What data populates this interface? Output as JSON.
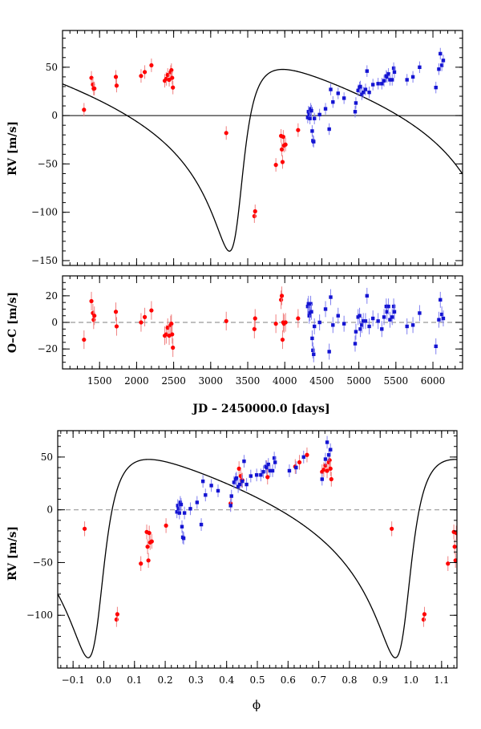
{
  "figure": {
    "ylabel_top": "RV [m/s]",
    "ylabel_resid": "O–C [m/s]",
    "xlabel_time": "JD – 2450000.0 [days]",
    "ylabel_phase": "RV [m/s]",
    "xlabel_phase": "ϕ"
  },
  "colors": {
    "red": "#ff0000",
    "blue": "#1414d2",
    "errRed": "#f08080",
    "errBlue": "#8080f0",
    "model": "#000000",
    "dash": "#999999"
  },
  "chart_data": [
    {
      "id": "rv-time",
      "type": "scatter",
      "xlabel": "JD – 2450000.0 [days]",
      "ylabel": "RV [m/s]",
      "xlim": [
        1000,
        6400
      ],
      "ylim": [
        -155,
        88
      ],
      "xticks": [
        1500,
        2000,
        2500,
        3000,
        3500,
        4000,
        4500,
        5000,
        5500,
        6000
      ],
      "yticks": [
        -150,
        -100,
        -50,
        0,
        50
      ],
      "zero_line": "solid",
      "model": "Keplerian fit, P≈3660 d, K≈94 m/s, e≈0.6",
      "series": [
        {
          "name": "red",
          "points": [
            [
              1290,
              6
            ],
            [
              1390,
              39
            ],
            [
              1410,
              32
            ],
            [
              1420,
              28
            ],
            [
              1430,
              28
            ],
            [
              1720,
              40
            ],
            [
              1730,
              31
            ],
            [
              2060,
              41
            ],
            [
              2110,
              45
            ],
            [
              2200,
              52
            ],
            [
              2380,
              36
            ],
            [
              2400,
              38
            ],
            [
              2420,
              42
            ],
            [
              2440,
              37
            ],
            [
              2460,
              45
            ],
            [
              2470,
              47
            ],
            [
              2480,
              39
            ],
            [
              2490,
              29
            ],
            [
              3210,
              -18
            ],
            [
              3590,
              -104
            ],
            [
              3600,
              -99
            ],
            [
              3880,
              -51
            ],
            [
              3950,
              -21
            ],
            [
              3960,
              -35
            ],
            [
              3970,
              -48
            ],
            [
              3980,
              -22
            ],
            [
              3990,
              -31
            ],
            [
              4010,
              -30
            ],
            [
              4180,
              -15
            ]
          ]
        },
        {
          "name": "blue",
          "points": [
            [
              4310,
              -2
            ],
            [
              4320,
              4
            ],
            [
              4330,
              1
            ],
            [
              4340,
              -3
            ],
            [
              4350,
              7
            ],
            [
              4360,
              5
            ],
            [
              4370,
              -16
            ],
            [
              4380,
              -26
            ],
            [
              4390,
              -27
            ],
            [
              4400,
              -3
            ],
            [
              4470,
              1
            ],
            [
              4550,
              7
            ],
            [
              4600,
              -14
            ],
            [
              4620,
              27
            ],
            [
              4650,
              14
            ],
            [
              4720,
              23
            ],
            [
              4800,
              18
            ],
            [
              4950,
              4
            ],
            [
              4960,
              13
            ],
            [
              4990,
              26
            ],
            [
              5010,
              29
            ],
            [
              5020,
              30
            ],
            [
              5040,
              22
            ],
            [
              5060,
              24
            ],
            [
              5090,
              27
            ],
            [
              5110,
              46
            ],
            [
              5140,
              24
            ],
            [
              5190,
              32
            ],
            [
              5260,
              33
            ],
            [
              5310,
              33
            ],
            [
              5340,
              36
            ],
            [
              5370,
              41
            ],
            [
              5380,
              40
            ],
            [
              5400,
              43
            ],
            [
              5420,
              37
            ],
            [
              5450,
              37
            ],
            [
              5470,
              49
            ],
            [
              5480,
              45
            ],
            [
              5650,
              37
            ],
            [
              5730,
              40
            ],
            [
              5820,
              50
            ],
            [
              6040,
              29
            ],
            [
              6080,
              48
            ],
            [
              6100,
              64
            ],
            [
              6120,
              52
            ],
            [
              6140,
              57
            ]
          ]
        }
      ]
    },
    {
      "id": "residuals",
      "type": "scatter",
      "ylabel": "O–C [m/s]",
      "xlim": [
        1000,
        6400
      ],
      "ylim": [
        -35,
        35
      ],
      "xticks": [
        1500,
        2000,
        2500,
        3000,
        3500,
        4000,
        4500,
        5000,
        5500,
        6000
      ],
      "yticks": [
        -20,
        0,
        20
      ],
      "zero_line": "dashed",
      "series": [
        {
          "name": "red",
          "points": [
            [
              1290,
              -13
            ],
            [
              1390,
              16
            ],
            [
              1410,
              7
            ],
            [
              1420,
              2
            ],
            [
              1430,
              5
            ],
            [
              1720,
              8
            ],
            [
              1730,
              -3
            ],
            [
              2060,
              0
            ],
            [
              2110,
              4
            ],
            [
              2200,
              9
            ],
            [
              2380,
              -10
            ],
            [
              2400,
              -9
            ],
            [
              2420,
              -4
            ],
            [
              2440,
              -10
            ],
            [
              2460,
              -2
            ],
            [
              2470,
              -1
            ],
            [
              2480,
              -9
            ],
            [
              2490,
              -19
            ],
            [
              3210,
              1
            ],
            [
              3590,
              -5
            ],
            [
              3600,
              3
            ],
            [
              3880,
              -1
            ],
            [
              3950,
              17
            ],
            [
              3960,
              20
            ],
            [
              3970,
              -13
            ],
            [
              3980,
              0
            ],
            [
              3990,
              -1
            ],
            [
              4010,
              0
            ],
            [
              4180,
              3
            ]
          ]
        },
        {
          "name": "blue",
          "points": [
            [
              4310,
              12
            ],
            [
              4320,
              14
            ],
            [
              4330,
              5
            ],
            [
              4340,
              7
            ],
            [
              4350,
              14
            ],
            [
              4360,
              8
            ],
            [
              4370,
              -12
            ],
            [
              4380,
              -21
            ],
            [
              4390,
              -24
            ],
            [
              4400,
              -3
            ],
            [
              4470,
              0
            ],
            [
              4550,
              10
            ],
            [
              4600,
              -22
            ],
            [
              4620,
              19
            ],
            [
              4650,
              -2
            ],
            [
              4720,
              5
            ],
            [
              4800,
              -1
            ],
            [
              4950,
              -16
            ],
            [
              4960,
              -7
            ],
            [
              4990,
              4
            ],
            [
              5010,
              5
            ],
            [
              5020,
              -5
            ],
            [
              5040,
              -2
            ],
            [
              5060,
              1
            ],
            [
              5090,
              1
            ],
            [
              5110,
              20
            ],
            [
              5140,
              -3
            ],
            [
              5190,
              3
            ],
            [
              5260,
              1
            ],
            [
              5310,
              -5
            ],
            [
              5340,
              4
            ],
            [
              5370,
              12
            ],
            [
              5380,
              8
            ],
            [
              5400,
              12
            ],
            [
              5420,
              2
            ],
            [
              5450,
              4
            ],
            [
              5470,
              12
            ],
            [
              5480,
              8
            ],
            [
              5650,
              -3
            ],
            [
              5730,
              -2
            ],
            [
              5820,
              7
            ],
            [
              6040,
              -18
            ],
            [
              6080,
              2
            ],
            [
              6100,
              17
            ],
            [
              6120,
              6
            ],
            [
              6140,
              3
            ]
          ]
        }
      ]
    },
    {
      "id": "rv-phase",
      "type": "scatter",
      "xlabel": "ϕ",
      "ylabel": "RV [m/s]",
      "xlim": [
        -0.15,
        1.15
      ],
      "ylim": [
        -150,
        75
      ],
      "xticks": [
        -0.1,
        0.0,
        0.1,
        0.2,
        0.3,
        0.4,
        0.5,
        0.6,
        0.7,
        0.8,
        0.9,
        1.0,
        1.1
      ],
      "yticks": [
        -100,
        -50,
        0,
        50
      ],
      "zero_line": "dashed",
      "period": 3660,
      "t_periastron": 3365,
      "model": "Keplerian fit, P≈3660 d, K≈94 m/s, e≈0.6"
    }
  ]
}
